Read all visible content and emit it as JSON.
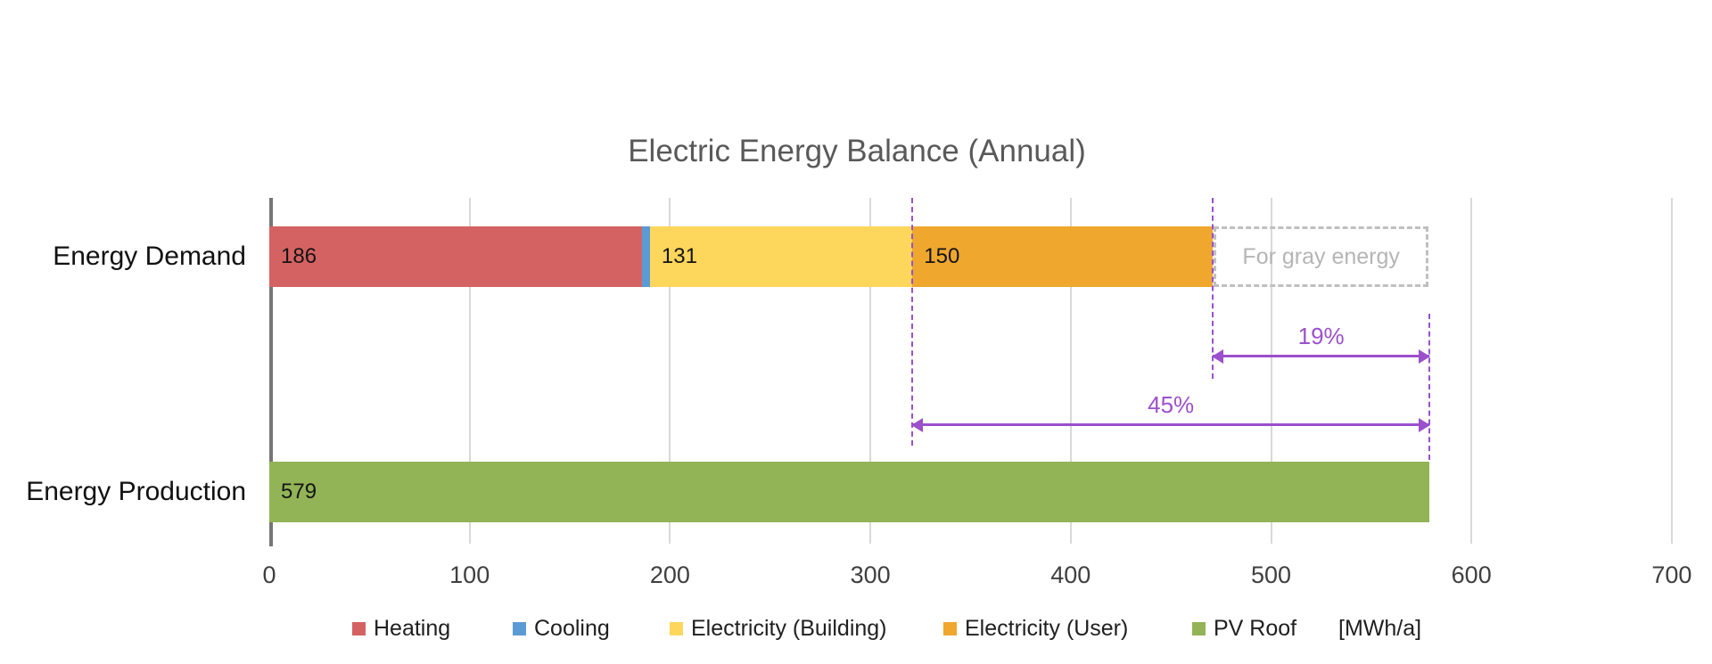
{
  "chart_data": {
    "type": "bar",
    "orientation": "horizontal",
    "stacked": true,
    "title": "Electric Energy Balance (Annual)",
    "categories": [
      "Energy Demand",
      "Energy Production"
    ],
    "series": [
      {
        "name": "Heating",
        "color": "#d56262",
        "values": [
          186,
          0
        ],
        "data_label": "186"
      },
      {
        "name": "Cooling",
        "color": "#5b9bd5",
        "values": [
          4,
          0
        ],
        "data_label": ""
      },
      {
        "name": "Electricity (Building)",
        "color": "#fdd65c",
        "values": [
          131,
          0
        ],
        "data_label": "131"
      },
      {
        "name": "Electricity (User)",
        "color": "#efa72e",
        "values": [
          150,
          0
        ],
        "data_label": "150"
      },
      {
        "name": "PV Roof",
        "color": "#93b456",
        "values": [
          0,
          579
        ],
        "data_label": "579"
      }
    ],
    "xlim": [
      0,
      700
    ],
    "xticks": [
      "0",
      "100",
      "200",
      "300",
      "400",
      "500",
      "600",
      "700"
    ],
    "unit_label": "[MWh/a]",
    "grid": true,
    "legend_position": "bottom",
    "annotations": {
      "gray_box": {
        "label": "For gray energy",
        "from": 471,
        "to": 579,
        "row": "Energy Demand"
      },
      "arrows": [
        {
          "label": "19%",
          "from": 471,
          "to": 579
        },
        {
          "label": "45%",
          "from": 321,
          "to": 579
        }
      ],
      "guide_lines": [
        {
          "at": 321
        },
        {
          "at": 471
        },
        {
          "at": 579
        }
      ]
    },
    "colors": {
      "accent_purple": "#9b50cc",
      "gridline": "#d9d9d9",
      "axis": "#767676",
      "gray_dashed": "#bfbfbf",
      "title_text": "#595959"
    }
  }
}
